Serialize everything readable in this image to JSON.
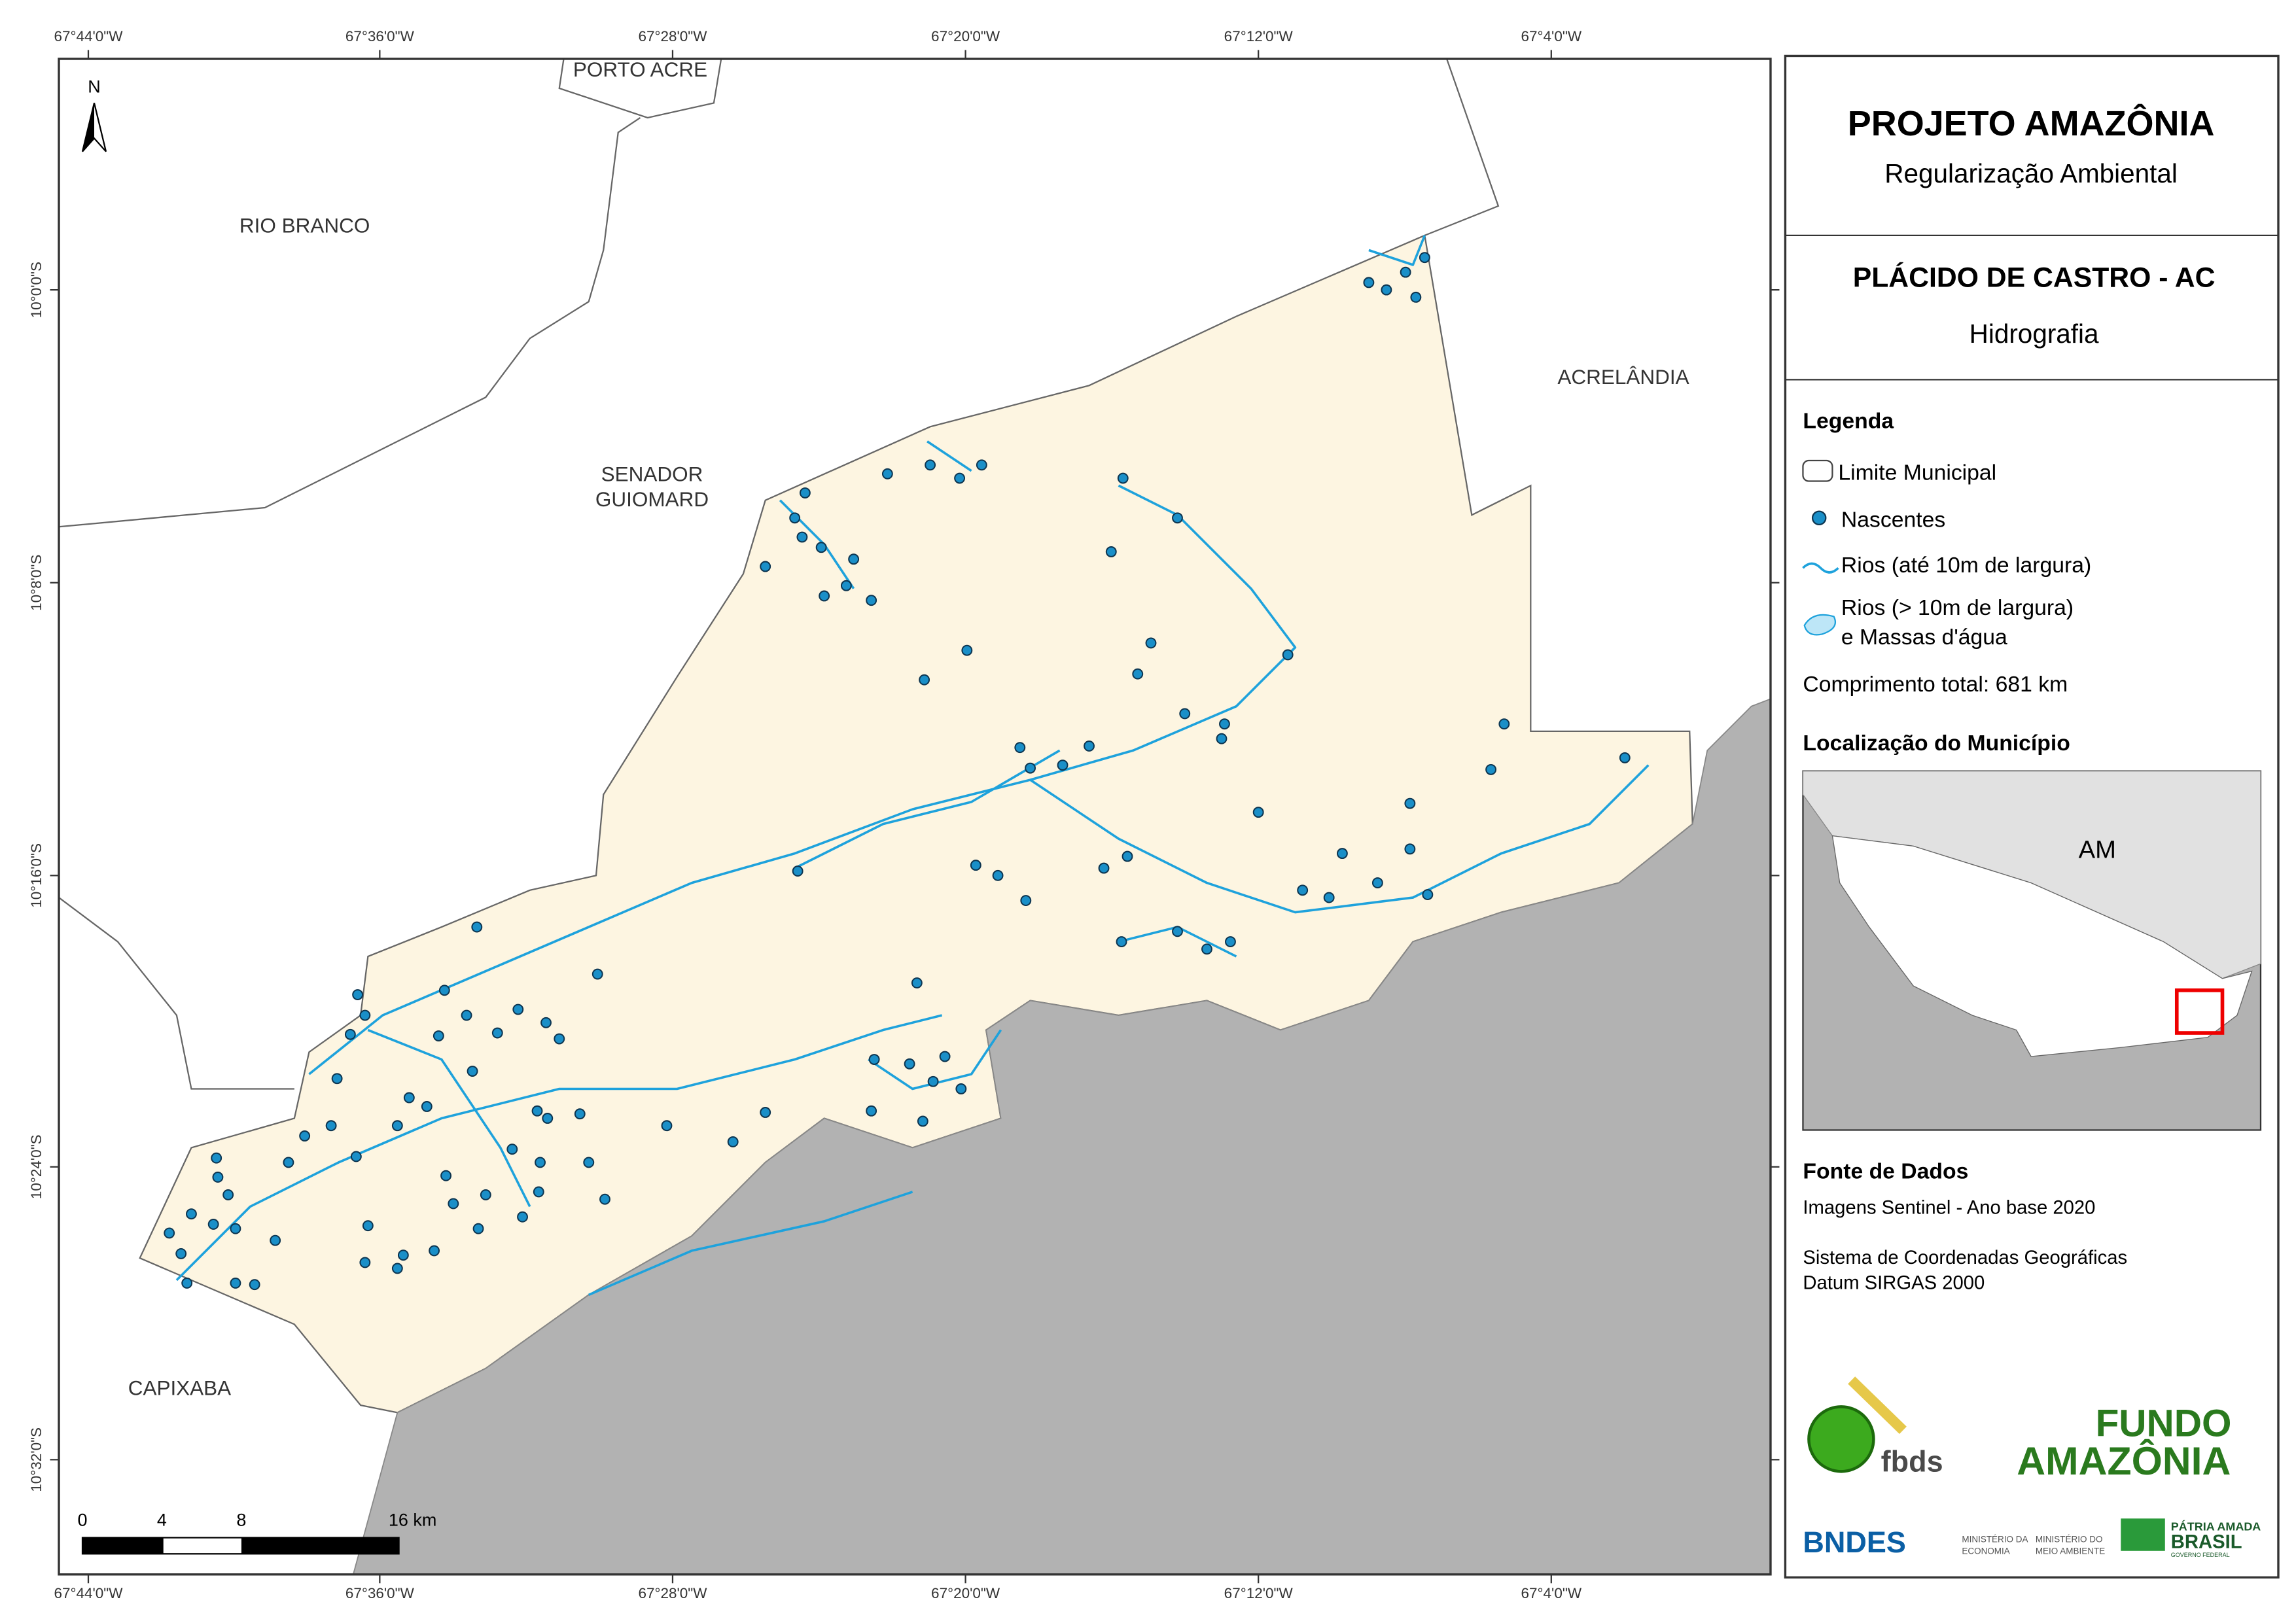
{
  "map": {
    "top_longitudes": [
      "67°44'0\"W",
      "67°36'0\"W",
      "67°28'0\"W",
      "67°20'0\"W",
      "67°12'0\"W",
      "67°4'0\"W"
    ],
    "bottom_longitudes": [
      "67°44'0\"W",
      "67°36'0\"W",
      "67°28'0\"W",
      "67°20'0\"W",
      "67°12'0\"W",
      "67°4'0\"W"
    ],
    "latitudes": [
      "10°0'0\"S",
      "10°8'0\"S",
      "10°16'0\"S",
      "10°24'0\"S",
      "10°32'0\"S"
    ],
    "north": "N",
    "places": [
      "PORTO ACRE",
      "RIO BRANCO",
      "SENADOR",
      "GUIOMARD",
      "ACRELÂNDIA",
      "CAPIXABA"
    ],
    "scale": [
      "0",
      "4",
      "8",
      "16 km"
    ]
  },
  "panel": {
    "title": "PROJETO AMAZÔNIA",
    "subtitle": "Regularização Ambiental",
    "municipality": "PLÁCIDO DE CASTRO - AC",
    "theme": "Hidrografia",
    "legend_title": "Legenda",
    "legend_items": [
      "Limite Municipal",
      "Nascentes",
      "Rios (até 10m de largura)",
      "Rios (> 10m de largura)",
      "e Massas d'água"
    ],
    "total": "Comprimento total:  681 km",
    "location_title": "Localização do Município",
    "location_label": "AM",
    "source_title": "Fonte de Dados",
    "source_lines": [
      "Imagens Sentinel - Ano base 2020",
      "Sistema de Coordenadas Geográficas",
      "Datum SIRGAS 2000"
    ],
    "logos": [
      "fbds",
      "FUNDO",
      "AMAZÔNIA",
      "BNDES",
      "MINISTÉRIO DA",
      "ECONOMIA",
      "MINISTÉRIO DO",
      "MEIO AMBIENTE",
      "PÁTRIA AMADA",
      "BRASIL",
      "GOVERNO FEDERAL"
    ]
  }
}
